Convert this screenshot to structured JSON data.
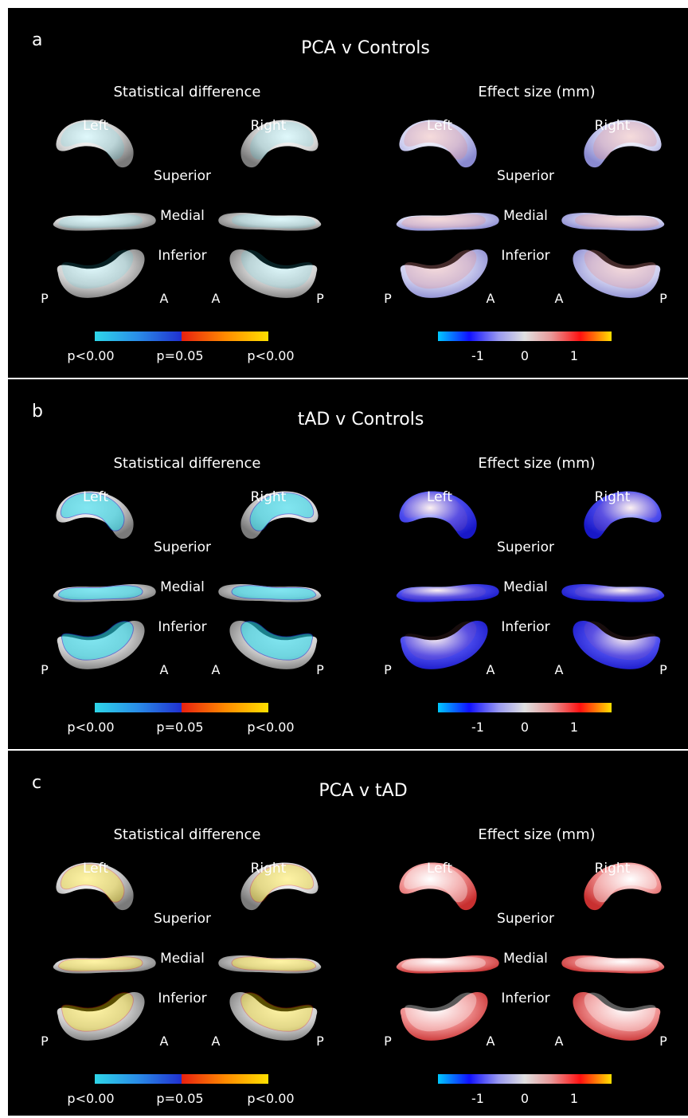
{
  "panels": [
    {
      "id": "a",
      "letter": "a",
      "title": "PCA v Controls",
      "left_heading": "Statistical difference",
      "right_heading": "Effect size (mm)",
      "side_left": "Left",
      "side_right": "Right",
      "views": [
        "Superior",
        "Medial",
        "Inferior"
      ],
      "directions": [
        "P",
        "A",
        "A",
        "P"
      ],
      "stat_ticks": [
        "p<0.00",
        "p=0.05",
        "p<0.00"
      ],
      "effect_ticks": [
        "-1",
        "0",
        "1"
      ]
    },
    {
      "id": "b",
      "letter": "b",
      "title": "tAD v Controls",
      "left_heading": "Statistical difference",
      "right_heading": "Effect size (mm)",
      "side_left": "Left",
      "side_right": "Right",
      "views": [
        "Superior",
        "Medial",
        "Inferior"
      ],
      "directions": [
        "P",
        "A",
        "A",
        "P"
      ],
      "stat_ticks": [
        "p<0.00",
        "p=0.05",
        "p<0.00"
      ],
      "effect_ticks": [
        "-1",
        "0",
        "1"
      ]
    },
    {
      "id": "c",
      "letter": "c",
      "title": "PCA v tAD",
      "left_heading": "Statistical difference",
      "right_heading": "Effect size (mm)",
      "side_left": "Left",
      "side_right": "Right",
      "views": [
        "Superior",
        "Medial",
        "Inferior"
      ],
      "directions": [
        "P",
        "A",
        "A",
        "P"
      ],
      "stat_ticks": [
        "p<0.00",
        "p=0.05",
        "p<0.00"
      ],
      "effect_ticks": [
        "-1",
        "0",
        "1"
      ]
    }
  ],
  "colors": {
    "background": "#000000",
    "surface_gray": "#c8c8c8",
    "stat_cyan": "#2ed6e8",
    "stat_blue": "#2030d0",
    "stat_red": "#e82010",
    "stat_yellow": "#ffe000",
    "effect_blue": "#1a1ae6",
    "effect_white": "#e8e8f0",
    "effect_red": "#e81010"
  }
}
